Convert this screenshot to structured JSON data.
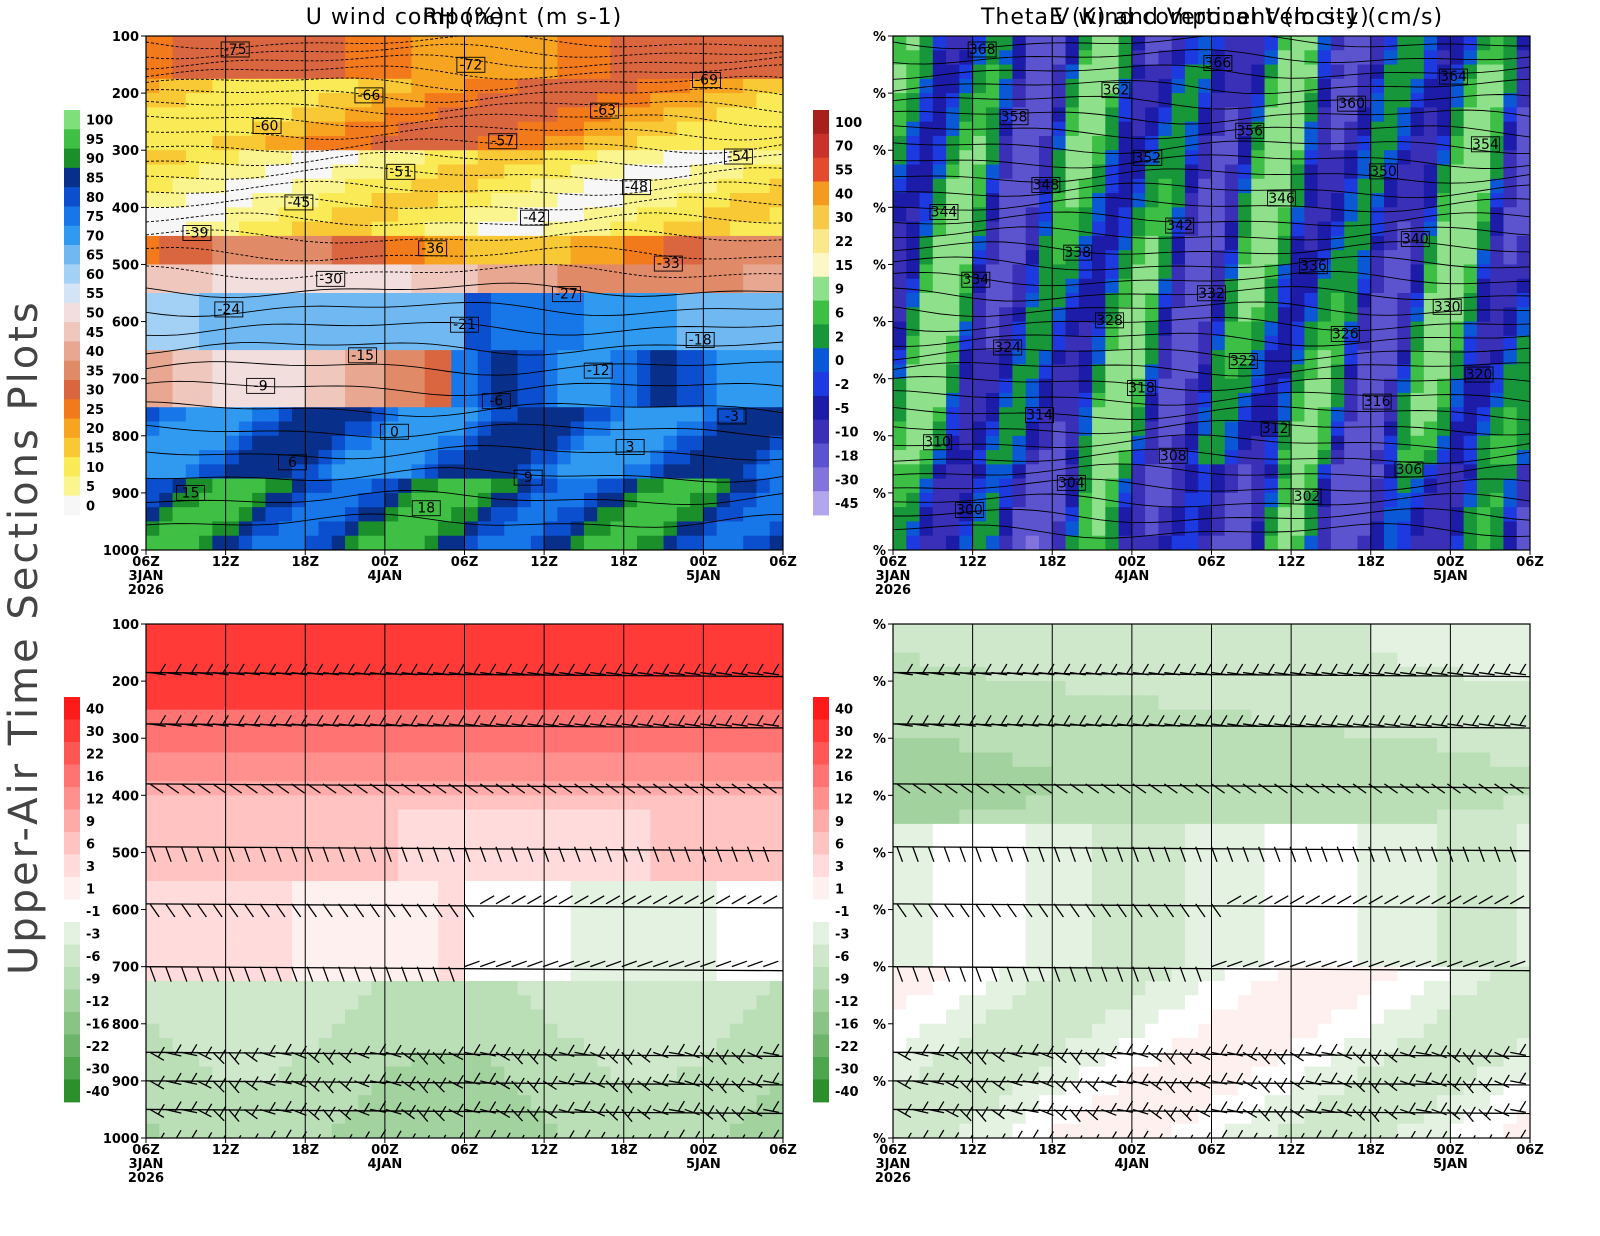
{
  "page": {
    "side_title": "Upper-Air Time Sections Plots"
  },
  "time_axis": {
    "ticks": [
      "06Z",
      "12Z",
      "18Z",
      "00Z",
      "06Z",
      "12Z",
      "18Z",
      "00Z",
      "06Z"
    ],
    "date_labels": [
      {
        "tick_index": 0,
        "lines": [
          "3JAN",
          "2026"
        ]
      },
      {
        "tick_index": 3,
        "lines": [
          "4JAN"
        ]
      },
      {
        "tick_index": 7,
        "lines": [
          "5JAN"
        ]
      }
    ]
  },
  "chart_data": [
    {
      "id": "rh",
      "type": "heatmap",
      "title": "RH (%)",
      "y_axis": {
        "ticks": [
          "100",
          "200",
          "300",
          "400",
          "500",
          "600",
          "700",
          "800",
          "900",
          "1000"
        ],
        "range": [
          100,
          1000
        ],
        "unit": "hPa"
      },
      "colorbar": {
        "labels": [
          "100",
          "95",
          "90",
          "85",
          "80",
          "75",
          "70",
          "65",
          "60",
          "55",
          "50",
          "45",
          "40",
          "35",
          "30",
          "25",
          "20",
          "15",
          "10",
          "5",
          "0"
        ],
        "colors": [
          "#7de07a",
          "#3fbf43",
          "#1a8f2a",
          "#08308a",
          "#0b4fcf",
          "#1877e8",
          "#2f9af0",
          "#6fb8f2",
          "#a3d0f5",
          "#d2e4f5",
          "#f3dede",
          "#efc7bd",
          "#e8a790",
          "#e08a68",
          "#d9663f",
          "#f27a1a",
          "#f7a520",
          "#f8c934",
          "#faea56",
          "#fbf590",
          "#f7f7f7"
        ]
      },
      "contour_labels": [
        "-75",
        "-72",
        "-69",
        "-66",
        "-63",
        "-60",
        "-57",
        "-54",
        "-51",
        "-48",
        "-45",
        "-42",
        "-39",
        "-36",
        "-33",
        "-30",
        "-27",
        "-24",
        "-21",
        "-18",
        "-15",
        "-12",
        "-9",
        "-6",
        "-3",
        "0",
        "3",
        "6",
        "9",
        "15",
        "18"
      ]
    },
    {
      "id": "thetae",
      "type": "heatmap",
      "title": "ThetaE (K) and Vertical Velocity (cm/s)",
      "y_axis": {
        "ticks": [
          "%",
          "%",
          "%",
          "%",
          "%",
          "%",
          "%",
          "%",
          "%",
          "%"
        ],
        "range": [
          100,
          1000
        ],
        "unit": "hPa"
      },
      "colorbar": {
        "labels": [
          "100",
          "70",
          "55",
          "40",
          "30",
          "22",
          "15",
          "9",
          "6",
          "2",
          "0",
          "-2",
          "-5",
          "-10",
          "-18",
          "-30",
          "-45"
        ],
        "colors": [
          "#a8201b",
          "#c8322a",
          "#e44a2d",
          "#f49a1c",
          "#f7c946",
          "#fbe88b",
          "#fdf6c5",
          "#8fe08a",
          "#3dbf45",
          "#17963a",
          "#0a58d6",
          "#1d3ae0",
          "#1c1ca8",
          "#3a30b8",
          "#5c54cf",
          "#8274dc",
          "#b2a6ee"
        ]
      },
      "contour_labels": [
        "368",
        "366",
        "364",
        "362",
        "360",
        "358",
        "356",
        "354",
        "352",
        "350",
        "348",
        "346",
        "344",
        "342",
        "340",
        "338",
        "336",
        "334",
        "332",
        "330",
        "328",
        "326",
        "324",
        "322",
        "320",
        "318",
        "316",
        "314",
        "312",
        "310",
        "308",
        "306",
        "304",
        "302",
        "300"
      ]
    },
    {
      "id": "uwind",
      "type": "heatmap",
      "title": "U wind component (m s-1)",
      "y_axis": {
        "ticks": [
          "100",
          "200",
          "300",
          "400",
          "500",
          "600",
          "700",
          "800",
          "900",
          "1000"
        ],
        "range": [
          100,
          1000
        ],
        "unit": "hPa"
      },
      "colorbar": {
        "labels": [
          "40",
          "30",
          "22",
          "16",
          "12",
          "9",
          "6",
          "3",
          "1",
          "-1",
          "-3",
          "-6",
          "-9",
          "-12",
          "-16",
          "-22",
          "-30",
          "-40"
        ],
        "colors": [
          "#ff1a1a",
          "#ff3a37",
          "#ff5754",
          "#ff7472",
          "#ff908d",
          "#ffaba9",
          "#ffc4c2",
          "#ffdcdb",
          "#fff0f0",
          "#ffffff",
          "#e4f2e2",
          "#cfe8cc",
          "#badeb6",
          "#a2d29e",
          "#89c485",
          "#6db56a",
          "#4ea64c",
          "#2b8f2b"
        ]
      },
      "barb_levels": [
        185,
        275,
        380,
        490,
        590,
        700,
        850,
        900,
        950,
        1000
      ]
    },
    {
      "id": "vwind",
      "type": "heatmap",
      "title": "V wind component (m s-1)",
      "y_axis": {
        "ticks": [
          "%",
          "%",
          "%",
          "%",
          "%",
          "%",
          "%",
          "%",
          "%",
          "%"
        ],
        "range": [
          100,
          1000
        ],
        "unit": "hPa"
      },
      "colorbar": {
        "labels": [
          "40",
          "30",
          "22",
          "16",
          "12",
          "9",
          "6",
          "3",
          "1",
          "-1",
          "-3",
          "-6",
          "-9",
          "-12",
          "-16",
          "-22",
          "-30",
          "-40"
        ],
        "colors": [
          "#ff1a1a",
          "#ff3a37",
          "#ff5754",
          "#ff7472",
          "#ff908d",
          "#ffaba9",
          "#ffc4c2",
          "#ffdcdb",
          "#fff0f0",
          "#ffffff",
          "#e4f2e2",
          "#cfe8cc",
          "#badeb6",
          "#a2d29e",
          "#89c485",
          "#6db56a",
          "#4ea64c",
          "#2b8f2b"
        ]
      },
      "barb_levels": [
        185,
        275,
        380,
        490,
        590,
        700,
        850,
        900,
        950,
        1000
      ]
    }
  ]
}
